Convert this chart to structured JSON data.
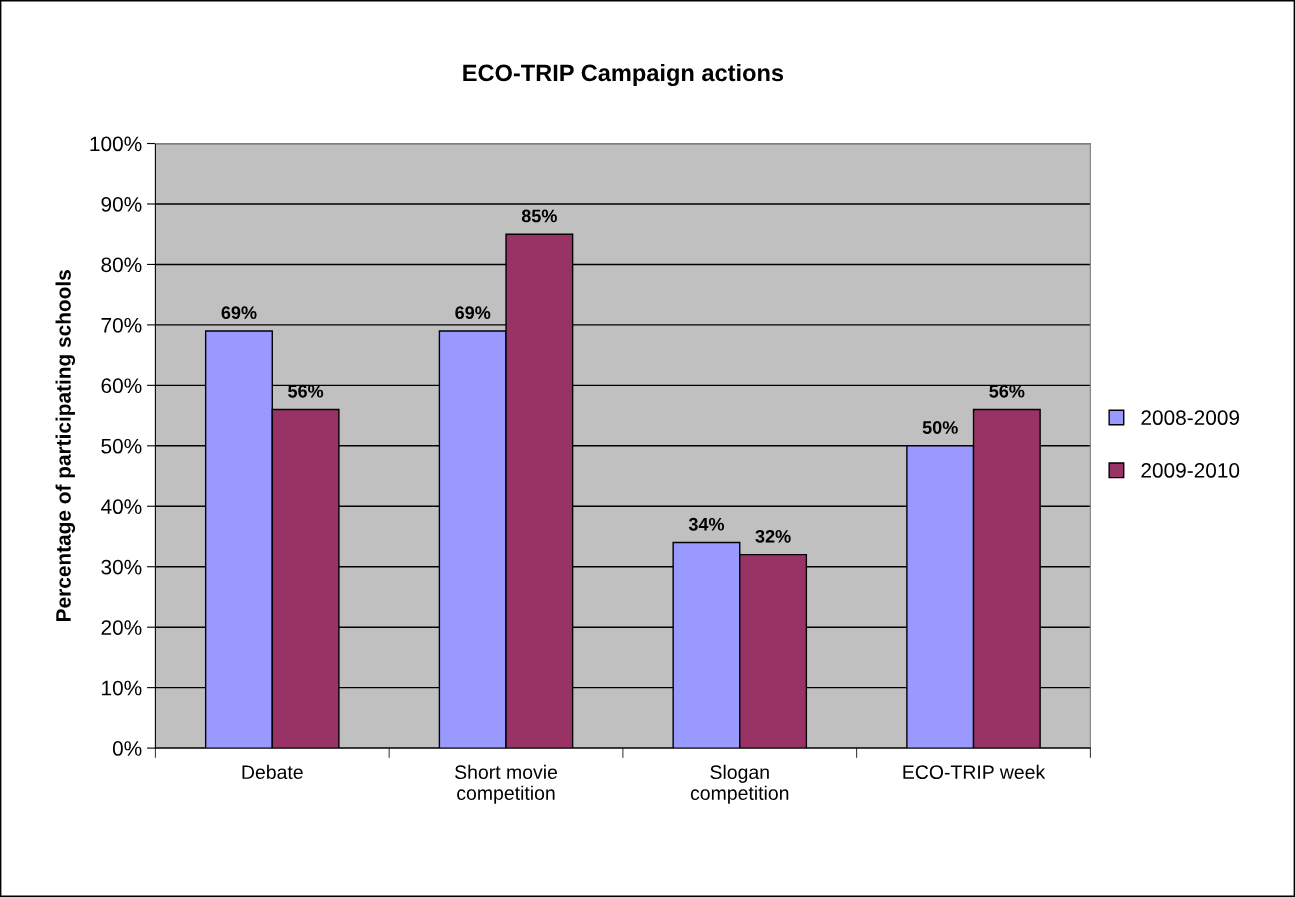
{
  "chart_data": {
    "type": "bar",
    "title": "ECO-TRIP Campaign actions",
    "ylabel": "Percentage of participating schools",
    "categories": [
      "Debate",
      "Short movie\ncompetition",
      "Slogan\ncompetition",
      "ECO-TRIP week"
    ],
    "series": [
      {
        "name": "2008-2009",
        "color": "#9999ff",
        "values": [
          69,
          69,
          34,
          50
        ],
        "value_labels": [
          "69%",
          "69%",
          "34%",
          "50%"
        ]
      },
      {
        "name": "2009-2010",
        "color": "#993366",
        "values": [
          56,
          85,
          32,
          56
        ],
        "value_labels": [
          "56%",
          "85%",
          "32%",
          "56%"
        ]
      }
    ],
    "ylim": [
      0,
      100
    ],
    "yticks": [
      {
        "value": 0,
        "label": "0%"
      },
      {
        "value": 10,
        "label": "10%"
      },
      {
        "value": 20,
        "label": "20%"
      },
      {
        "value": 30,
        "label": "30%"
      },
      {
        "value": 40,
        "label": "40%"
      },
      {
        "value": 50,
        "label": "50%"
      },
      {
        "value": 60,
        "label": "60%"
      },
      {
        "value": 70,
        "label": "70%"
      },
      {
        "value": 80,
        "label": "80%"
      },
      {
        "value": 90,
        "label": "90%"
      },
      {
        "value": 100,
        "label": "100%"
      }
    ],
    "grid": "y",
    "legend": "right"
  }
}
